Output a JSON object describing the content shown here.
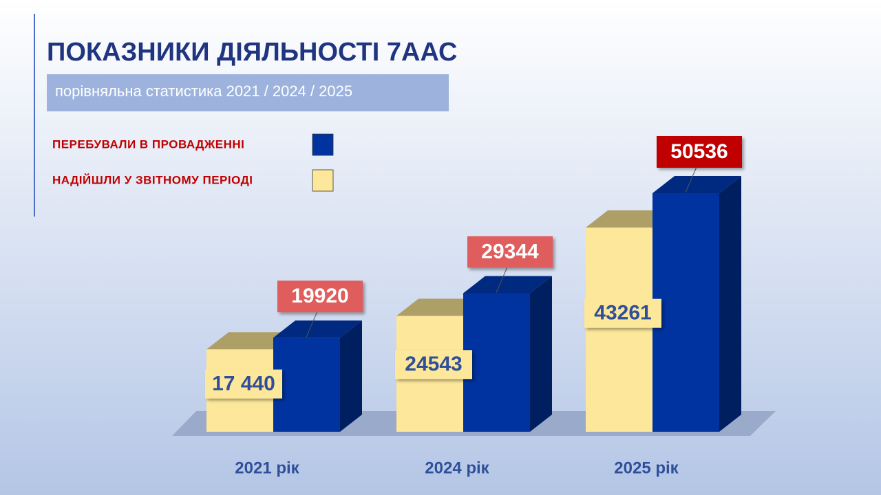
{
  "chart_data": {
    "type": "bar3d",
    "title": "ПОКАЗНИКИ ДІЯЛЬНОСТІ 7ААС",
    "subtitle": "порівняльна статистика 2021 / 2024 / 2025",
    "categories": [
      "2021 рік",
      "2024 рік",
      "2025 рік"
    ],
    "series": [
      {
        "name": "НАДІЙШЛИ У ЗВІТНОМУ ПЕРІОДІ",
        "color": "#fde79a",
        "values": [
          17440,
          24543,
          43261
        ],
        "value_labels": [
          "17 440",
          "24543",
          "43261"
        ]
      },
      {
        "name": "ПЕРЕБУВАЛИ В ПРОВАДЖЕННІ",
        "color": "#0033a0",
        "values": [
          19920,
          29344,
          50536
        ]
      }
    ]
  }
}
